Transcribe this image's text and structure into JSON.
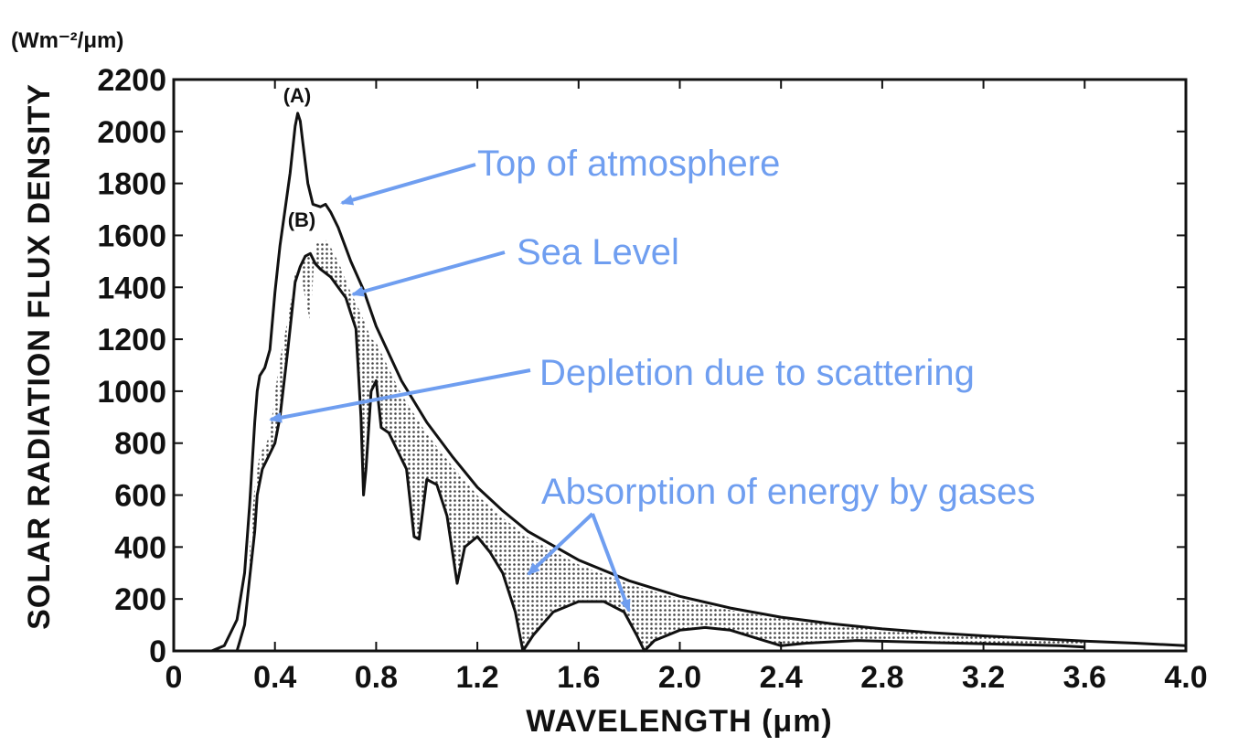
{
  "chart_data": {
    "type": "line",
    "title": "",
    "xlabel": "WAVELENGTH (μm)",
    "ylabel": "SOLAR RADIATION FLUX DENSITY",
    "yunit": "(Wm⁻²/μm)",
    "xlim": [
      0,
      4.0
    ],
    "ylim": [
      0,
      2200
    ],
    "xticks": [
      "0",
      "0.4",
      "0.8",
      "1.2",
      "1.6",
      "2.0",
      "2.4",
      "2.8",
      "3.2",
      "3.6",
      "4.0"
    ],
    "yticks": [
      "0",
      "200",
      "400",
      "600",
      "800",
      "1000",
      "1200",
      "1400",
      "1600",
      "1800",
      "2000",
      "2200"
    ],
    "series": [
      {
        "name": "(A)",
        "points": [
          [
            0.15,
            0
          ],
          [
            0.2,
            20
          ],
          [
            0.25,
            120
          ],
          [
            0.28,
            300
          ],
          [
            0.3,
            560
          ],
          [
            0.32,
            880
          ],
          [
            0.33,
            1000
          ],
          [
            0.34,
            1060
          ],
          [
            0.36,
            1090
          ],
          [
            0.38,
            1160
          ],
          [
            0.4,
            1380
          ],
          [
            0.42,
            1560
          ],
          [
            0.44,
            1700
          ],
          [
            0.46,
            1840
          ],
          [
            0.48,
            2020
          ],
          [
            0.49,
            2070
          ],
          [
            0.5,
            2040
          ],
          [
            0.51,
            1960
          ],
          [
            0.53,
            1800
          ],
          [
            0.55,
            1720
          ],
          [
            0.58,
            1710
          ],
          [
            0.6,
            1720
          ],
          [
            0.62,
            1690
          ],
          [
            0.65,
            1630
          ],
          [
            0.7,
            1500
          ],
          [
            0.75,
            1390
          ],
          [
            0.8,
            1250
          ],
          [
            0.9,
            1040
          ],
          [
            1.0,
            880
          ],
          [
            1.1,
            750
          ],
          [
            1.2,
            630
          ],
          [
            1.3,
            540
          ],
          [
            1.4,
            460
          ],
          [
            1.6,
            350
          ],
          [
            1.8,
            270
          ],
          [
            2.0,
            210
          ],
          [
            2.2,
            165
          ],
          [
            2.4,
            130
          ],
          [
            2.6,
            105
          ],
          [
            2.8,
            85
          ],
          [
            3.0,
            70
          ],
          [
            3.2,
            58
          ],
          [
            3.4,
            48
          ],
          [
            3.6,
            38
          ],
          [
            3.8,
            30
          ],
          [
            4.0,
            20
          ]
        ]
      },
      {
        "name": "(B)",
        "points": [
          [
            0.25,
            0
          ],
          [
            0.28,
            100
          ],
          [
            0.3,
            280
          ],
          [
            0.32,
            460
          ],
          [
            0.33,
            600
          ],
          [
            0.35,
            700
          ],
          [
            0.38,
            760
          ],
          [
            0.4,
            800
          ],
          [
            0.42,
            900
          ],
          [
            0.45,
            1150
          ],
          [
            0.48,
            1420
          ],
          [
            0.5,
            1480
          ],
          [
            0.52,
            1520
          ],
          [
            0.54,
            1530
          ],
          [
            0.56,
            1490
          ],
          [
            0.58,
            1470
          ],
          [
            0.62,
            1440
          ],
          [
            0.65,
            1400
          ],
          [
            0.68,
            1360
          ],
          [
            0.7,
            1300
          ],
          [
            0.72,
            1240
          ],
          [
            0.74,
            900
          ],
          [
            0.75,
            600
          ],
          [
            0.76,
            700
          ],
          [
            0.78,
            1000
          ],
          [
            0.8,
            1040
          ],
          [
            0.82,
            860
          ],
          [
            0.85,
            840
          ],
          [
            0.88,
            780
          ],
          [
            0.92,
            700
          ],
          [
            0.95,
            440
          ],
          [
            0.97,
            430
          ],
          [
            1.0,
            660
          ],
          [
            1.04,
            640
          ],
          [
            1.08,
            520
          ],
          [
            1.12,
            260
          ],
          [
            1.15,
            400
          ],
          [
            1.2,
            440
          ],
          [
            1.25,
            380
          ],
          [
            1.3,
            300
          ],
          [
            1.35,
            150
          ],
          [
            1.38,
            0
          ],
          [
            1.42,
            60
          ],
          [
            1.5,
            150
          ],
          [
            1.6,
            190
          ],
          [
            1.7,
            190
          ],
          [
            1.78,
            150
          ],
          [
            1.83,
            60
          ],
          [
            1.86,
            0
          ],
          [
            1.9,
            40
          ],
          [
            2.0,
            80
          ],
          [
            2.1,
            90
          ],
          [
            2.2,
            80
          ],
          [
            2.3,
            50
          ],
          [
            2.4,
            20
          ],
          [
            2.5,
            30
          ],
          [
            2.7,
            40
          ],
          [
            2.9,
            35
          ],
          [
            3.1,
            30
          ],
          [
            3.3,
            25
          ],
          [
            3.5,
            20
          ],
          [
            3.6,
            15
          ]
        ]
      }
    ],
    "curve_labels": [
      "(A)",
      "(B)"
    ],
    "annotations": [
      "Top of atmosphere",
      "Sea Level",
      "Depletion due to scattering",
      "Absorption of energy by gases"
    ],
    "colors": {
      "curve": "#111111",
      "annotation": "#6f9ef0",
      "shading": "#555555"
    },
    "grid": false,
    "legend": "none"
  }
}
